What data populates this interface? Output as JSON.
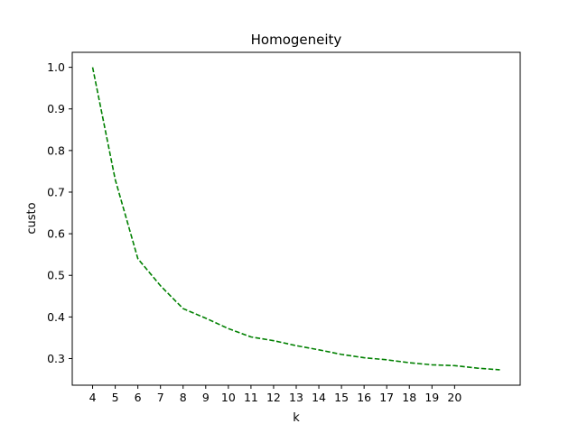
{
  "chart_data": {
    "type": "line",
    "title": "Homogeneity",
    "xlabel": "k",
    "ylabel": "custo",
    "x": [
      4,
      5,
      6,
      7,
      8,
      9,
      10,
      11,
      12,
      13,
      14,
      15,
      16,
      17,
      18,
      19,
      20,
      21,
      22
    ],
    "xticks": [
      "4",
      "5",
      "6",
      "7",
      "8",
      "9",
      "10",
      "11",
      "12",
      "13",
      "14",
      "15",
      "16",
      "17",
      "18",
      "19",
      "20"
    ],
    "yticks": [
      "0.3",
      "0.4",
      "0.5",
      "0.6",
      "0.7",
      "0.8",
      "0.9",
      "1.0"
    ],
    "xlim": [
      3.1,
      22.9
    ],
    "ylim": [
      0.236,
      1.036
    ],
    "grid": false,
    "series": [
      {
        "color": "#008000",
        "linestyle": "dashed",
        "values": [
          1.0,
          0.73,
          0.54,
          0.475,
          0.42,
          0.397,
          0.372,
          0.352,
          0.343,
          0.331,
          0.321,
          0.31,
          0.302,
          0.297,
          0.29,
          0.285,
          0.283,
          0.277,
          0.273
        ]
      }
    ]
  }
}
